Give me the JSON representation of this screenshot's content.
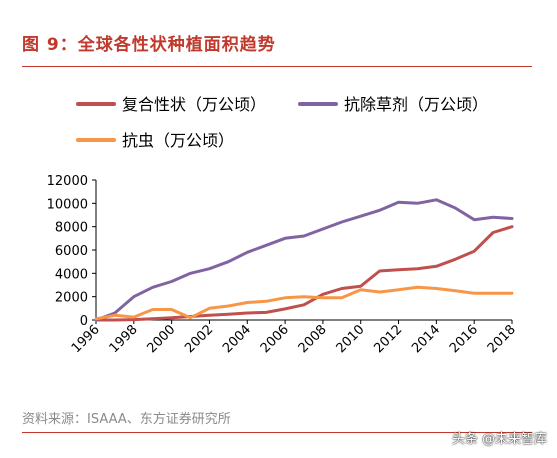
{
  "figure": {
    "title": "图 9：全球各性状种植面积趋势",
    "source": "资料来源：ISAAA、东方证券研究所",
    "watermark": "头条 @未来智库"
  },
  "colors": {
    "accent": "#c0392b",
    "series_herbicide": "#8064a2",
    "series_stacked": "#c0504d",
    "series_insect": "#f79646"
  },
  "chart_data": {
    "type": "line",
    "title": "",
    "xlabel": "",
    "ylabel": "",
    "ylim": [
      0,
      12000
    ],
    "yticks": [
      0,
      2000,
      4000,
      6000,
      8000,
      10000,
      12000
    ],
    "xticks": [
      1996,
      1998,
      2000,
      2002,
      2004,
      2006,
      2008,
      2010,
      2012,
      2014,
      2016,
      2018
    ],
    "xlim": [
      1996,
      2018
    ],
    "grid": false,
    "legend": "top",
    "x": [
      1996,
      1997,
      1998,
      1999,
      2000,
      2001,
      2002,
      2003,
      2004,
      2005,
      2006,
      2007,
      2008,
      2009,
      2010,
      2011,
      2012,
      2013,
      2014,
      2015,
      2016,
      2017,
      2018
    ],
    "series": [
      {
        "name": "复合性状（万公顷）",
        "color": "#c0504d",
        "values": [
          0,
          0,
          30,
          100,
          200,
          300,
          400,
          500,
          600,
          650,
          950,
          1300,
          2200,
          2700,
          2900,
          4200,
          4300,
          4400,
          4600,
          5200,
          5900,
          7500,
          8000
        ]
      },
      {
        "name": "抗除草剂（万公顷）",
        "color": "#8064a2",
        "values": [
          0,
          600,
          2000,
          2800,
          3300,
          4000,
          4400,
          5000,
          5800,
          6400,
          7000,
          7200,
          7800,
          8400,
          8900,
          9400,
          10100,
          10000,
          10300,
          9600,
          8600,
          8800,
          8700
        ]
      },
      {
        "name": "抗虫（万公顷）",
        "color": "#f79646",
        "values": [
          100,
          400,
          250,
          900,
          900,
          200,
          1000,
          1200,
          1500,
          1600,
          1900,
          2000,
          1900,
          1900,
          2600,
          2400,
          2600,
          2800,
          2700,
          2500,
          2300,
          2300,
          2300
        ]
      }
    ]
  }
}
